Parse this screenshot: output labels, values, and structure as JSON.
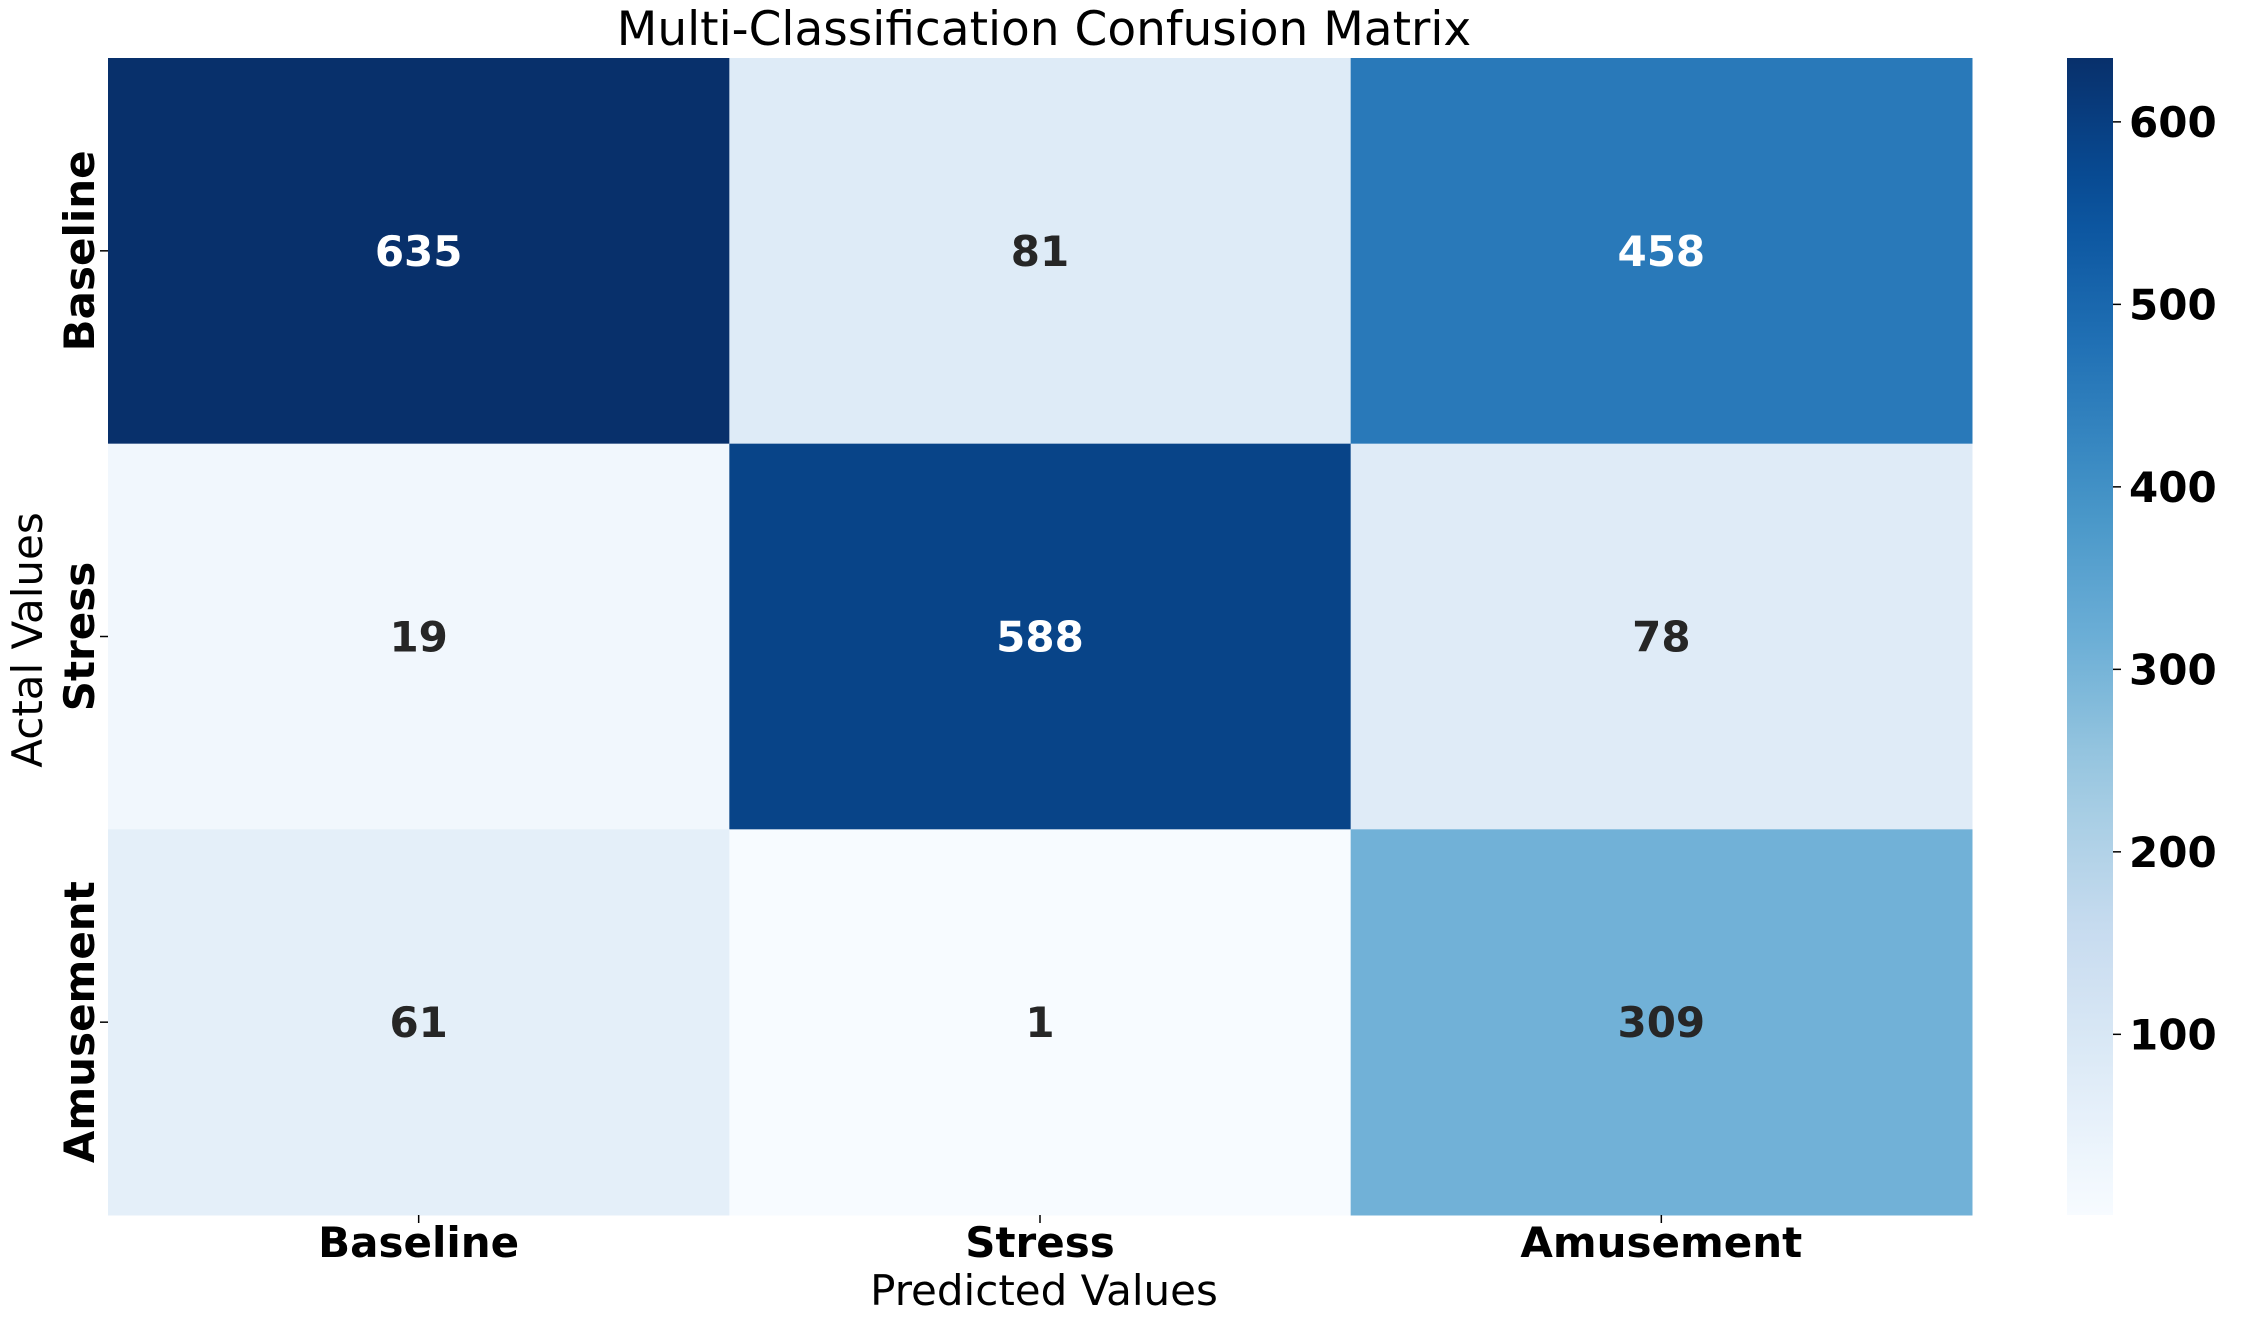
{
  "chart_data": {
    "type": "heatmap",
    "title": "Multi-Classification Confusion Matrix",
    "xlabel": "Predicted Values",
    "ylabel": "Actal Values",
    "x_categories": [
      "Baseline",
      "Stress",
      "Amusement"
    ],
    "y_categories": [
      "Baseline",
      "Stress",
      "Amusement"
    ],
    "values": [
      [
        635,
        81,
        458
      ],
      [
        19,
        588,
        78
      ],
      [
        61,
        1,
        309
      ]
    ],
    "colormap": "Blues",
    "vmin": 1,
    "vmax": 635,
    "colorbar_ticks": [
      100,
      200,
      300,
      400,
      500,
      600
    ]
  }
}
